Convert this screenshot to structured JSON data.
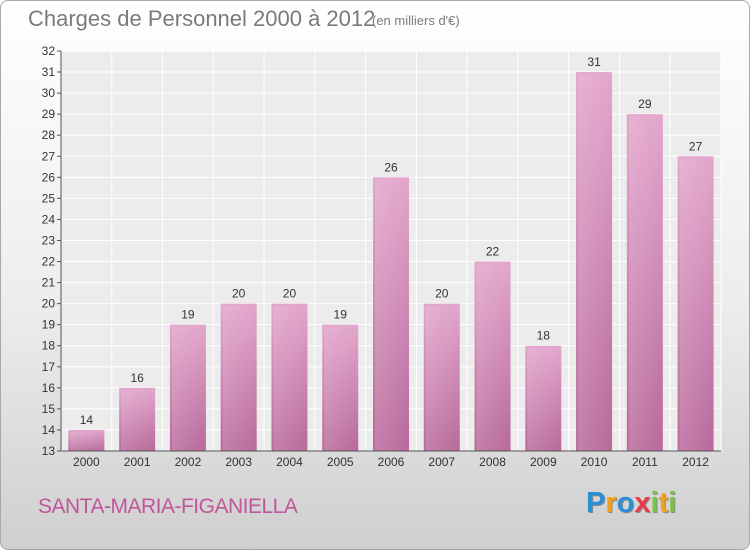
{
  "chart_data": {
    "type": "bar",
    "title": "Charges de Personnel 2000 à 2012",
    "subtitle": "(en milliers d'€)",
    "categories": [
      "2000",
      "2001",
      "2002",
      "2003",
      "2004",
      "2005",
      "2006",
      "2007",
      "2008",
      "2009",
      "2010",
      "2011",
      "2012"
    ],
    "values": [
      14,
      16,
      19,
      20,
      20,
      19,
      26,
      20,
      22,
      18,
      31,
      29,
      27
    ],
    "ylim": [
      13,
      32
    ],
    "yticks": [
      13,
      14,
      15,
      16,
      17,
      18,
      19,
      20,
      21,
      22,
      23,
      24,
      25,
      26,
      27,
      28,
      29,
      30,
      31,
      32
    ],
    "grid": true,
    "bar_color": "#d58fbd"
  },
  "footer": {
    "commune": "SANTA-MARIA-FIGANIELLA",
    "logo": {
      "letters": [
        "P",
        "r",
        "o",
        "x",
        "i",
        "t",
        "i"
      ],
      "colors": [
        "#2a8fd6",
        "#f0a020",
        "#2a8fd6",
        "#e8384c",
        "#7cc242",
        "#f0a020",
        "#7cc242"
      ]
    }
  }
}
